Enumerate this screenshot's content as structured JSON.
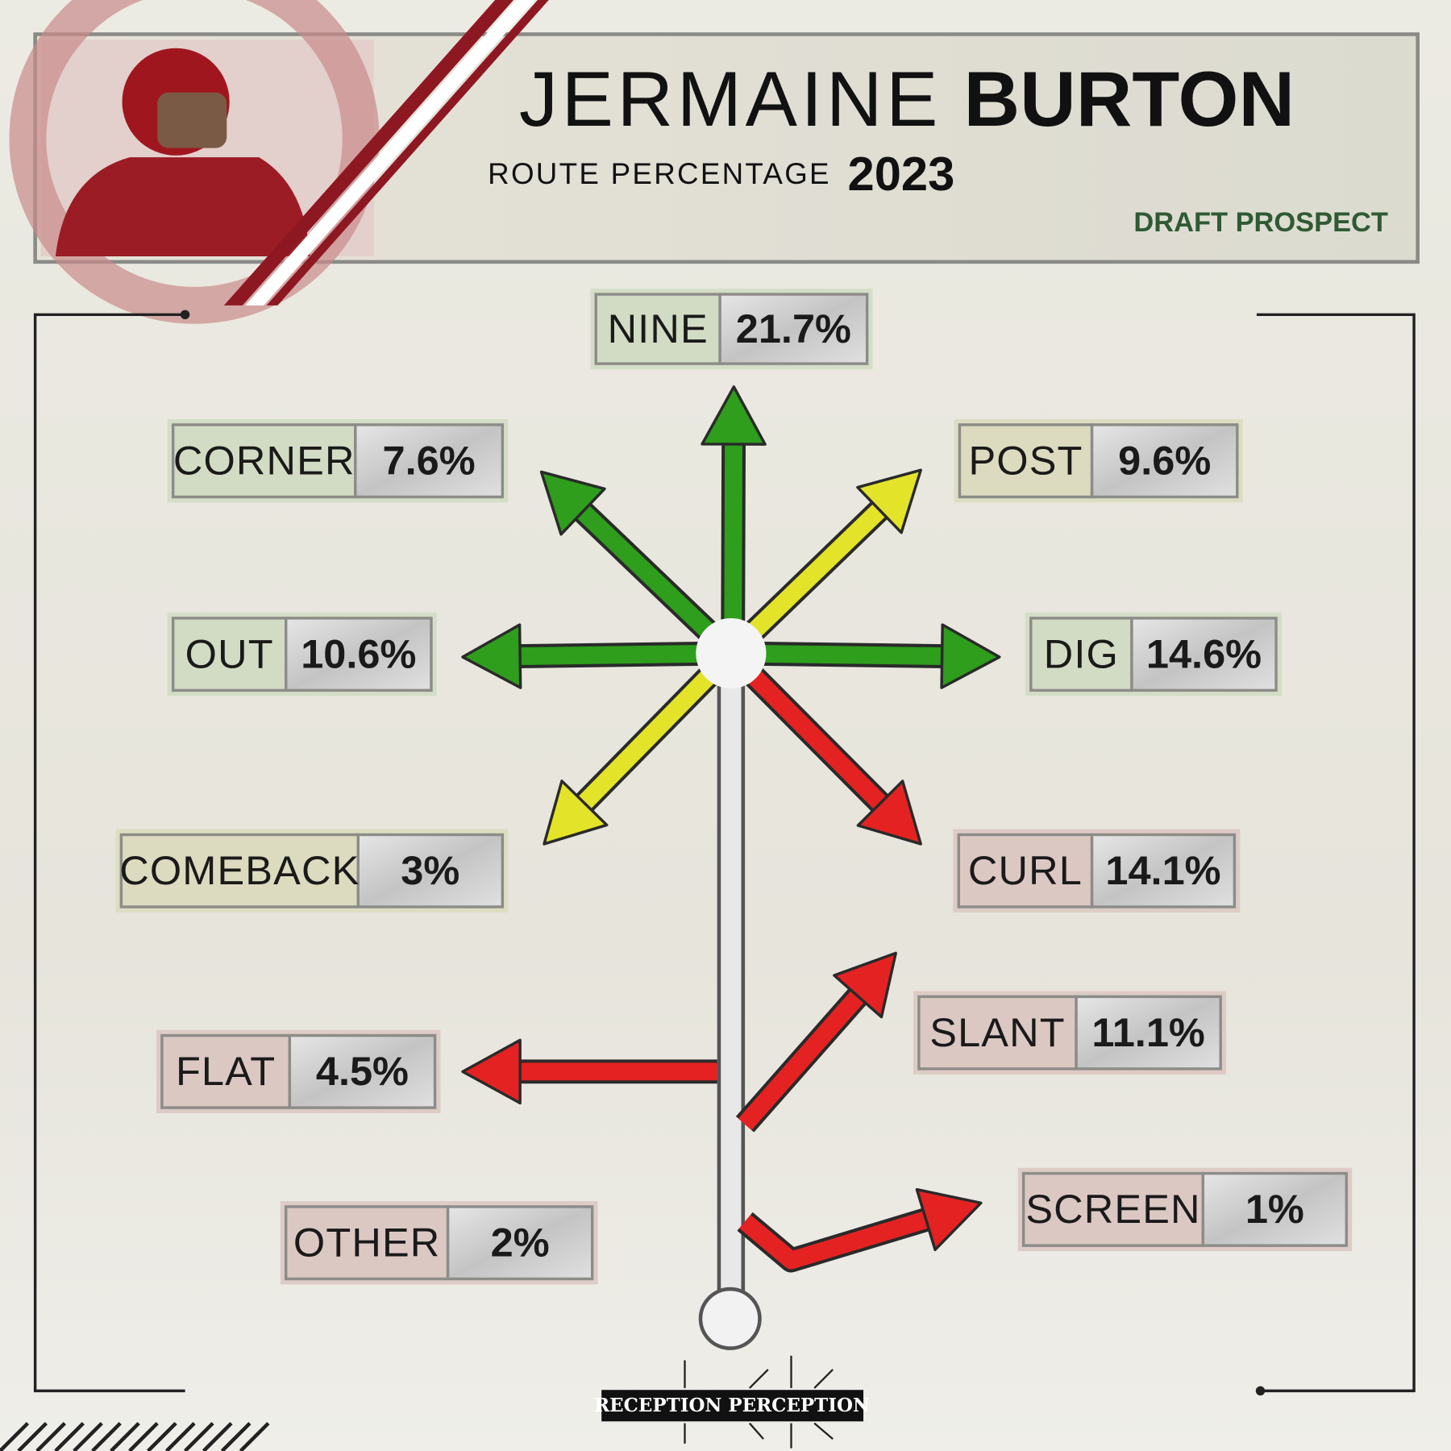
{
  "header": {
    "first_name": "JERMAINE",
    "last_name": "BURTON",
    "subtitle": "ROUTE PERCENTAGE",
    "year": "2023",
    "tag": "DRAFT PROSPECT"
  },
  "routes": [
    {
      "name": "NINE",
      "value": "21.7%",
      "color": "#2e9e1c"
    },
    {
      "name": "CORNER",
      "value": "7.6%",
      "color": "#2e9e1c"
    },
    {
      "name": "POST",
      "value": "9.6%",
      "color": "#e3e32a"
    },
    {
      "name": "OUT",
      "value": "10.6%",
      "color": "#2e9e1c"
    },
    {
      "name": "DIG",
      "value": "14.6%",
      "color": "#2e9e1c"
    },
    {
      "name": "COMEBACK",
      "value": "3%",
      "color": "#e3e32a"
    },
    {
      "name": "CURL",
      "value": "14.1%",
      "color": "#e52222"
    },
    {
      "name": "SLANT",
      "value": "11.1%",
      "color": "#e52222"
    },
    {
      "name": "FLAT",
      "value": "4.5%",
      "color": "#e52222"
    },
    {
      "name": "SCREEN",
      "value": "1%",
      "color": "#e52222"
    },
    {
      "name": "OTHER",
      "value": "2%",
      "color": "#e52222"
    }
  ],
  "footer": {
    "brand": "RECEPTION PERCEPTION"
  }
}
